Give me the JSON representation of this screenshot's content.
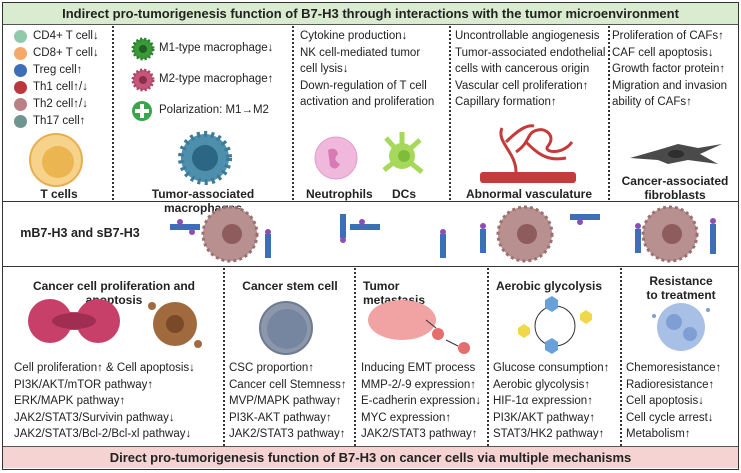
{
  "top_banner": "Indirect pro-tumorigenesis function of B7-H3 through interactions with the tumor microenvironment",
  "bottom_banner": "Direct pro-tumorigenesis function of B7-H3 on cancer cells via multiple mechanisms",
  "t_cells": {
    "title": "T cells",
    "items": [
      {
        "label": "CD4+ T cell↓",
        "color": "#8fcbab"
      },
      {
        "label": "CD8+ T cell↓",
        "color": "#f4a96a"
      },
      {
        "label": "Treg cell↑",
        "color": "#3d6fb6"
      },
      {
        "label": "Th1 cell↑/↓",
        "color": "#b9383c"
      },
      {
        "label": "Th2 cell↑/↓",
        "color": "#b98085"
      },
      {
        "label": "Th17 cell↑",
        "color": "#6f9590"
      }
    ]
  },
  "macrophages": {
    "title": "Tumor-associated macrophages",
    "items": [
      "M1-type macrophage↓",
      "M2-type macrophage↑",
      "Polarization: M1→M2"
    ]
  },
  "neutrophils_dcs": {
    "lines": [
      "Cytokine production↓",
      "NK cell-mediated tumor",
      "cell lysis↓",
      "Down-regulation of T cell",
      "activation and proliferation"
    ],
    "label_neutrophils": "Neutrophils",
    "label_dcs": "DCs"
  },
  "vasculature": {
    "title": "Abnormal vasculature",
    "lines": [
      "Uncontrollable angiogenesis",
      "Tumor-associated endothelial",
      "cells with cancerous origin",
      "Vascular cell proliferation↑",
      "Capillary formation↑"
    ]
  },
  "fibroblasts": {
    "title": "Cancer-associated fibroblasts",
    "lines": [
      "Proliferation of CAFs↑",
      "CAF cell apoptosis↓",
      "Growth factor protein↑",
      "Migration and invasion",
      "ability of CAFs↑"
    ]
  },
  "middle_label": "mB7-H3 and sB7-H3",
  "bottom": [
    {
      "title": "Cancer cell proliferation and apoptosis",
      "lines": [
        "Cell proliferation↑ & Cell apoptosis↓",
        "PI3K/AKT/mTOR pathway↑",
        "ERK/MAPK pathway↑",
        "JAK2/STAT3/Survivin pathway↓",
        "JAK2/STAT3/Bcl-2/Bcl-xl pathway↓"
      ]
    },
    {
      "title": "Cancer stem cell",
      "lines": [
        "CSC proportion↑",
        "Cancer cell Stemness↑",
        "MVP/MAPK pathway↑",
        "PI3K-AKT pathway↑",
        "JAK2/STAT3 pathway↑"
      ]
    },
    {
      "title": "Tumor metastasis",
      "lines": [
        "Inducing EMT process",
        "MMP-2/-9 expression↑",
        "E-cadherin expression↓",
        "MYC expression↑",
        "JAK2/STAT3 pathway↑"
      ]
    },
    {
      "title": "Aerobic glycolysis",
      "lines": [
        "Glucose consumption↑",
        "Aerobic glycolysis↑",
        "HIF-1α expression↑",
        "PI3K/AKT pathway↑",
        "STAT3/HK2 pathway↑"
      ]
    },
    {
      "title": "Resistance to treatment",
      "lines": [
        "Chemoresistance↑",
        "Radioresistance↑",
        "Cell apoptosis↓",
        "Cell cycle arrest↓",
        "Metabolism↑"
      ]
    }
  ]
}
